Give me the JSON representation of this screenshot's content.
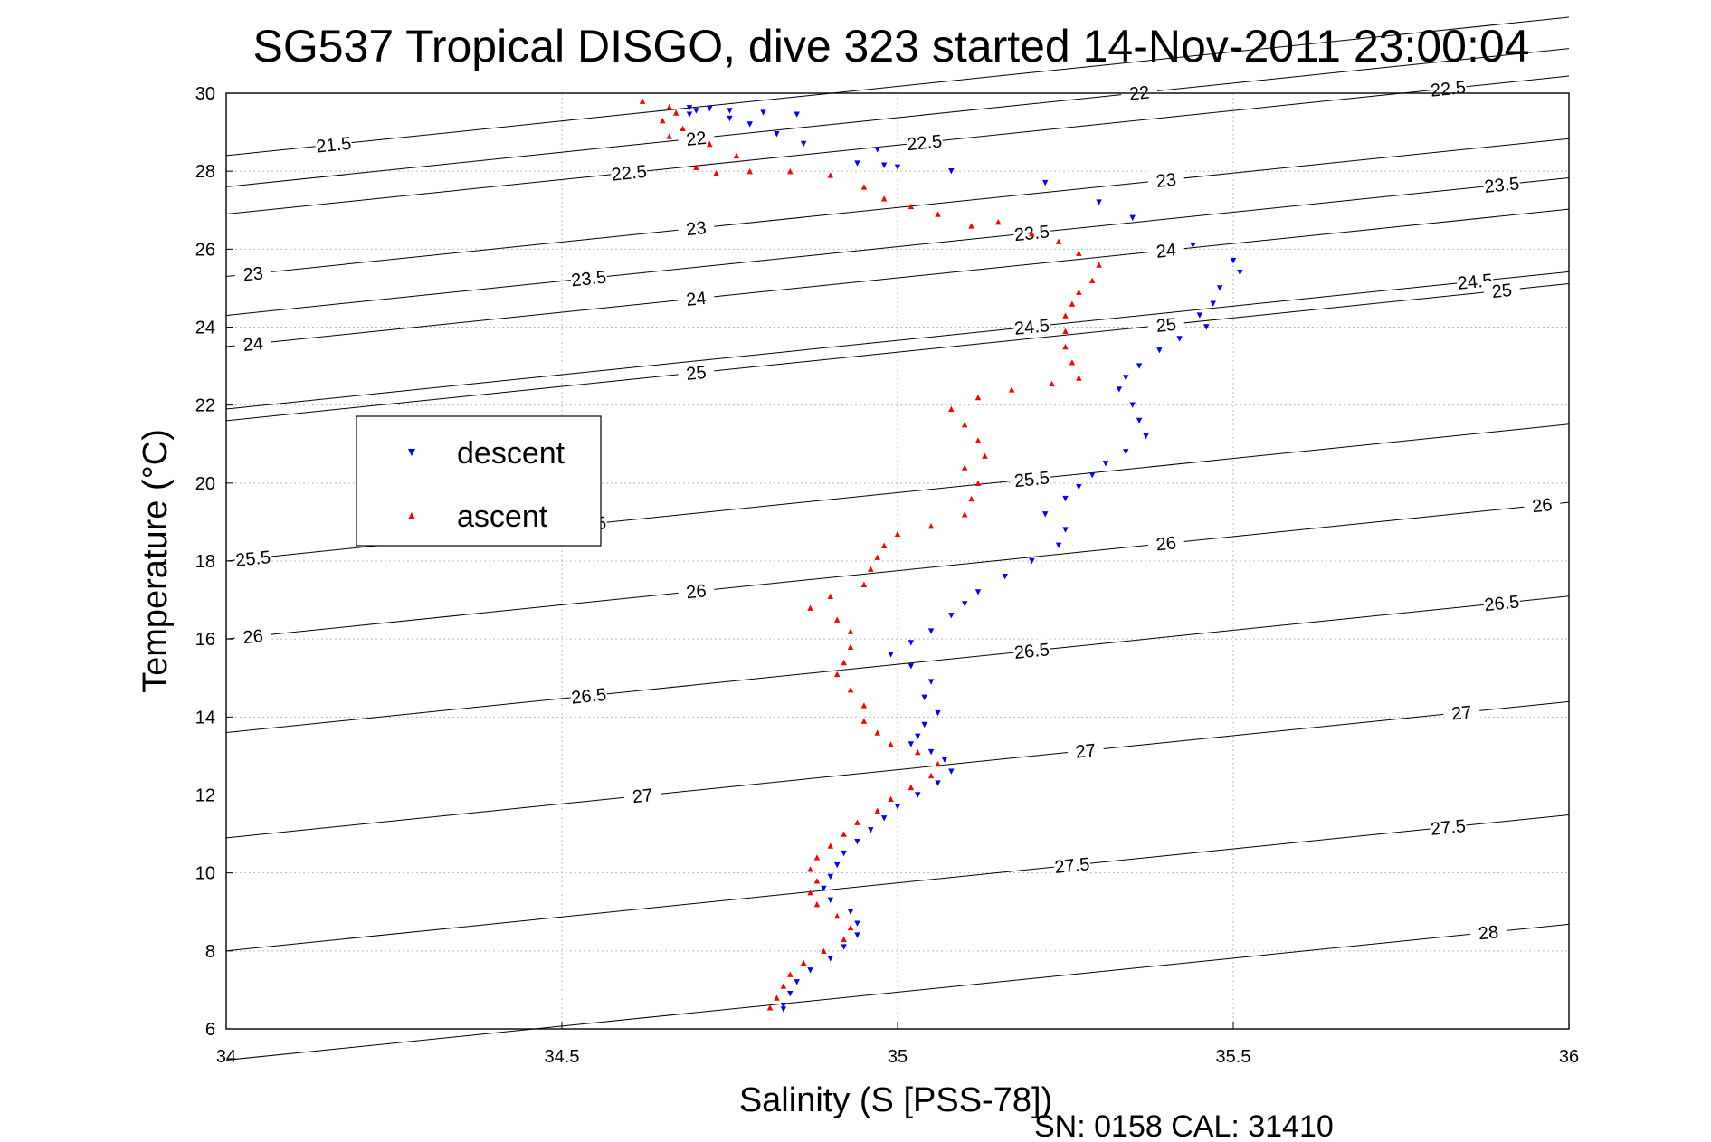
{
  "chart_data": {
    "type": "scatter",
    "title": "SG537 Tropical DISGO, dive 323 started 14-Nov-2011 23:00:04",
    "xlabel": "Salinity (S [PSS-78])",
    "ylabel": "Temperature (°C)",
    "footer": "SN: 0158  CAL: 31410",
    "xlim": [
      34,
      36
    ],
    "ylim": [
      6,
      30
    ],
    "xticks": [
      "34",
      "34.5",
      "35",
      "35.5",
      "36"
    ],
    "yticks": [
      "6",
      "8",
      "10",
      "12",
      "14",
      "16",
      "18",
      "20",
      "22",
      "24",
      "26",
      "28",
      "30"
    ],
    "grid": true,
    "legend_position": "middle-left",
    "isopycnal_lines": [
      {
        "sigma": 21.5,
        "labels": [
          "21.5"
        ]
      },
      {
        "sigma": 22,
        "labels": [
          "22",
          "22"
        ]
      },
      {
        "sigma": 22.5,
        "labels": [
          "22.5",
          "22.5",
          "22.5"
        ]
      },
      {
        "sigma": 23,
        "labels": [
          "23",
          "23",
          "23"
        ]
      },
      {
        "sigma": 23.5,
        "labels": [
          "23.5",
          "23.5",
          "23.5"
        ]
      },
      {
        "sigma": 24,
        "labels": [
          "24",
          "24",
          "24"
        ]
      },
      {
        "sigma": 24.5,
        "labels": [
          "24.5",
          "24.5"
        ]
      },
      {
        "sigma": 25,
        "labels": [
          "25",
          "25",
          "25"
        ]
      },
      {
        "sigma": 25.5,
        "labels": [
          "25.5",
          "25.5",
          "25.5"
        ]
      },
      {
        "sigma": 26,
        "labels": [
          "26",
          "26",
          "26",
          "26"
        ]
      },
      {
        "sigma": 26.5,
        "labels": [
          "26.5",
          "26.5",
          "26.5"
        ]
      },
      {
        "sigma": 27,
        "labels": [
          "27",
          "27",
          "27"
        ]
      },
      {
        "sigma": 27.5,
        "labels": [
          "27.5",
          "27.5"
        ]
      },
      {
        "sigma": 28,
        "labels": [
          "28"
        ]
      }
    ],
    "series": [
      {
        "name": "descent",
        "color": "#0000ff",
        "marker": "triangle-down",
        "points": [
          [
            34.69,
            29.62
          ],
          [
            34.7,
            29.55
          ],
          [
            34.69,
            29.45
          ],
          [
            34.72,
            29.6
          ],
          [
            34.75,
            29.55
          ],
          [
            34.8,
            29.5
          ],
          [
            34.85,
            29.45
          ],
          [
            34.75,
            29.35
          ],
          [
            34.78,
            29.2
          ],
          [
            34.82,
            28.95
          ],
          [
            34.86,
            28.7
          ],
          [
            34.97,
            28.55
          ],
          [
            34.94,
            28.2
          ],
          [
            34.98,
            28.15
          ],
          [
            35.0,
            28.1
          ],
          [
            35.08,
            28.0
          ],
          [
            35.22,
            27.7
          ],
          [
            35.3,
            27.2
          ],
          [
            35.35,
            26.8
          ],
          [
            35.44,
            26.1
          ],
          [
            35.5,
            25.7
          ],
          [
            35.51,
            25.4
          ],
          [
            35.48,
            25.0
          ],
          [
            35.47,
            24.6
          ],
          [
            35.45,
            24.3
          ],
          [
            35.46,
            24.0
          ],
          [
            35.42,
            23.7
          ],
          [
            35.39,
            23.4
          ],
          [
            35.36,
            23.0
          ],
          [
            35.34,
            22.7
          ],
          [
            35.33,
            22.4
          ],
          [
            35.35,
            22.0
          ],
          [
            35.36,
            21.6
          ],
          [
            35.37,
            21.2
          ],
          [
            35.34,
            20.8
          ],
          [
            35.31,
            20.5
          ],
          [
            35.29,
            20.2
          ],
          [
            35.27,
            19.9
          ],
          [
            35.25,
            19.6
          ],
          [
            35.22,
            19.2
          ],
          [
            35.25,
            18.8
          ],
          [
            35.24,
            18.4
          ],
          [
            35.2,
            18.0
          ],
          [
            35.16,
            17.6
          ],
          [
            35.12,
            17.2
          ],
          [
            35.1,
            16.9
          ],
          [
            35.08,
            16.6
          ],
          [
            35.05,
            16.2
          ],
          [
            35.02,
            15.9
          ],
          [
            34.99,
            15.6
          ],
          [
            35.02,
            15.3
          ],
          [
            35.05,
            14.9
          ],
          [
            35.04,
            14.5
          ],
          [
            35.06,
            14.1
          ],
          [
            35.04,
            13.8
          ],
          [
            35.03,
            13.5
          ],
          [
            35.02,
            13.3
          ],
          [
            35.05,
            13.1
          ],
          [
            35.07,
            12.9
          ],
          [
            35.08,
            12.6
          ],
          [
            35.06,
            12.3
          ],
          [
            35.03,
            12.0
          ],
          [
            35.0,
            11.7
          ],
          [
            34.98,
            11.4
          ],
          [
            34.96,
            11.1
          ],
          [
            34.94,
            10.8
          ],
          [
            34.92,
            10.5
          ],
          [
            34.91,
            10.2
          ],
          [
            34.9,
            9.9
          ],
          [
            34.89,
            9.6
          ],
          [
            34.9,
            9.3
          ],
          [
            34.93,
            9.0
          ],
          [
            34.94,
            8.7
          ],
          [
            34.94,
            8.4
          ],
          [
            34.92,
            8.1
          ],
          [
            34.9,
            7.8
          ],
          [
            34.87,
            7.5
          ],
          [
            34.85,
            7.2
          ],
          [
            34.84,
            6.9
          ],
          [
            34.83,
            6.6
          ],
          [
            34.83,
            6.5
          ]
        ]
      },
      {
        "name": "ascent",
        "color": "#ff0000",
        "marker": "triangle-up",
        "points": [
          [
            34.62,
            29.8
          ],
          [
            34.66,
            29.65
          ],
          [
            34.67,
            29.5
          ],
          [
            34.65,
            29.3
          ],
          [
            34.68,
            29.1
          ],
          [
            34.66,
            28.9
          ],
          [
            34.72,
            28.7
          ],
          [
            34.76,
            28.4
          ],
          [
            34.7,
            28.1
          ],
          [
            34.73,
            27.95
          ],
          [
            34.78,
            28.0
          ],
          [
            34.84,
            28.0
          ],
          [
            34.9,
            27.9
          ],
          [
            34.95,
            27.6
          ],
          [
            34.98,
            27.3
          ],
          [
            35.02,
            27.1
          ],
          [
            35.06,
            26.9
          ],
          [
            35.11,
            26.6
          ],
          [
            35.15,
            26.7
          ],
          [
            35.2,
            26.4
          ],
          [
            35.24,
            26.2
          ],
          [
            35.27,
            25.9
          ],
          [
            35.3,
            25.6
          ],
          [
            35.29,
            25.2
          ],
          [
            35.27,
            24.9
          ],
          [
            35.26,
            24.6
          ],
          [
            35.25,
            24.3
          ],
          [
            35.25,
            23.9
          ],
          [
            35.25,
            23.5
          ],
          [
            35.26,
            23.1
          ],
          [
            35.27,
            22.7
          ],
          [
            35.23,
            22.55
          ],
          [
            35.17,
            22.4
          ],
          [
            35.12,
            22.2
          ],
          [
            35.08,
            21.9
          ],
          [
            35.1,
            21.5
          ],
          [
            35.12,
            21.1
          ],
          [
            35.13,
            20.7
          ],
          [
            35.1,
            20.4
          ],
          [
            35.12,
            20.0
          ],
          [
            35.11,
            19.6
          ],
          [
            35.1,
            19.2
          ],
          [
            35.05,
            18.9
          ],
          [
            35.0,
            18.7
          ],
          [
            34.98,
            18.4
          ],
          [
            34.97,
            18.1
          ],
          [
            34.96,
            17.8
          ],
          [
            34.95,
            17.4
          ],
          [
            34.9,
            17.1
          ],
          [
            34.87,
            16.8
          ],
          [
            34.91,
            16.5
          ],
          [
            34.93,
            16.2
          ],
          [
            34.93,
            15.8
          ],
          [
            34.92,
            15.4
          ],
          [
            34.91,
            15.1
          ],
          [
            34.93,
            14.7
          ],
          [
            34.95,
            14.3
          ],
          [
            34.95,
            13.9
          ],
          [
            34.97,
            13.6
          ],
          [
            34.99,
            13.3
          ],
          [
            35.03,
            13.1
          ],
          [
            35.06,
            12.8
          ],
          [
            35.05,
            12.5
          ],
          [
            35.02,
            12.2
          ],
          [
            34.99,
            11.9
          ],
          [
            34.97,
            11.6
          ],
          [
            34.94,
            11.3
          ],
          [
            34.92,
            11.0
          ],
          [
            34.9,
            10.7
          ],
          [
            34.88,
            10.4
          ],
          [
            34.87,
            10.1
          ],
          [
            34.88,
            9.8
          ],
          [
            34.87,
            9.5
          ],
          [
            34.88,
            9.2
          ],
          [
            34.91,
            8.9
          ],
          [
            34.93,
            8.6
          ],
          [
            34.92,
            8.3
          ],
          [
            34.89,
            8.0
          ],
          [
            34.86,
            7.7
          ],
          [
            34.84,
            7.4
          ],
          [
            34.83,
            7.1
          ],
          [
            34.82,
            6.8
          ],
          [
            34.81,
            6.55
          ]
        ]
      }
    ]
  }
}
